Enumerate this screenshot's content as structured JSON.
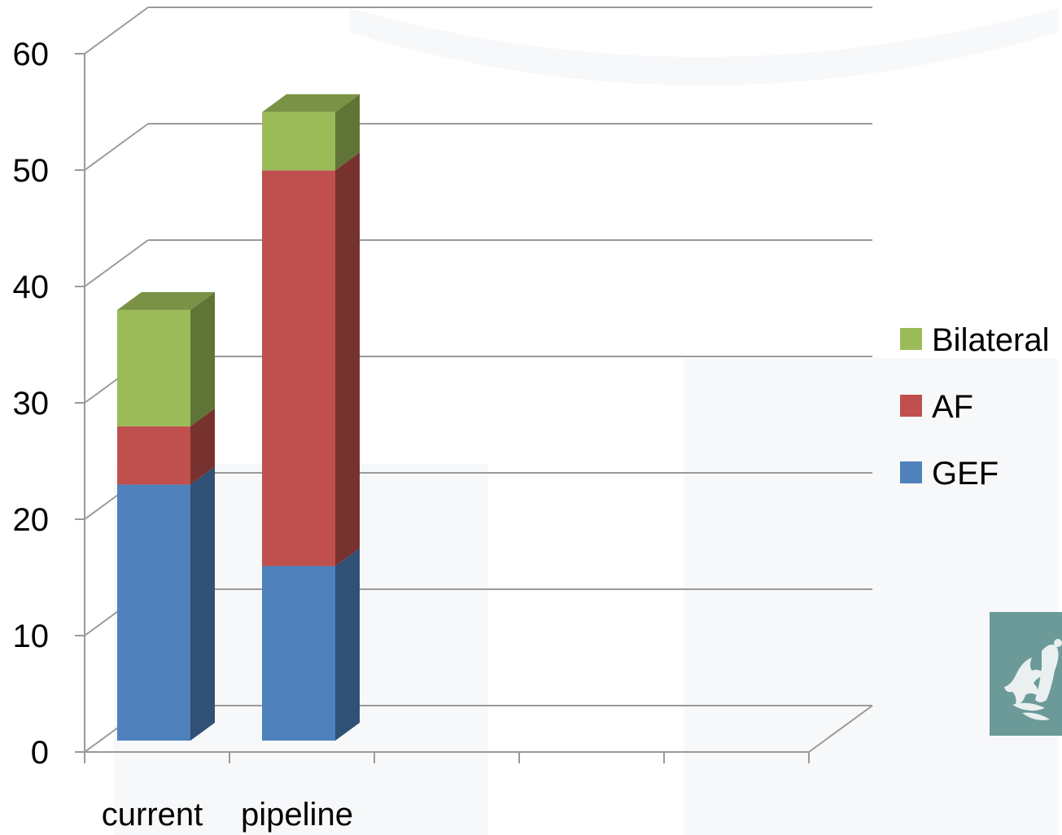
{
  "chart_data": {
    "type": "bar",
    "stacked": true,
    "three_d": true,
    "categories": [
      "current",
      "pipeline",
      "",
      "",
      ""
    ],
    "series": [
      {
        "name": "GEF",
        "values": [
          22,
          15,
          null,
          null,
          null
        ],
        "color": "#4f81bd"
      },
      {
        "name": "AF",
        "values": [
          5,
          34,
          null,
          null,
          null
        ],
        "color": "#c0504d"
      },
      {
        "name": "Bilateral",
        "values": [
          10,
          5,
          null,
          null,
          null
        ],
        "color": "#9bbb59"
      }
    ],
    "y_ticks": [
      "0",
      "10",
      "20",
      "30",
      "40",
      "50",
      "60"
    ],
    "ylim": [
      0,
      60
    ],
    "grid": true,
    "legend_position": "right",
    "title": "",
    "xlabel": "",
    "ylabel": ""
  },
  "emblem": {
    "name": "coat-of-arms-emblem",
    "color": "#6b9a98"
  }
}
